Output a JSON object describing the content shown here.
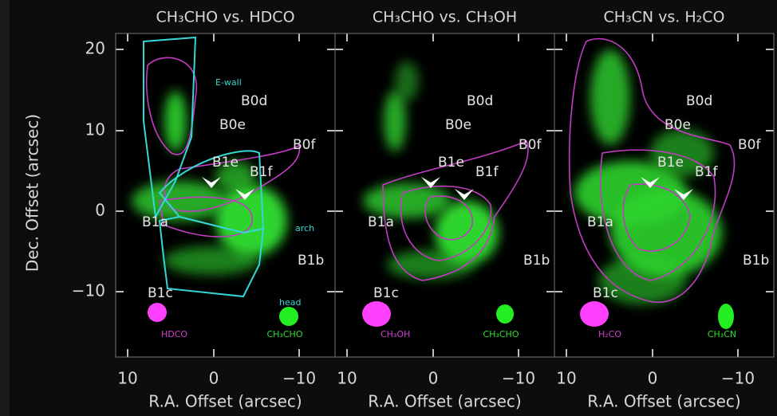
{
  "figure": {
    "y_axis": {
      "label": "Dec. Offset (arcsec)",
      "ticks": [
        "20",
        "10",
        "0",
        "−10"
      ]
    },
    "panels": [
      {
        "title": "CH₃CHO vs. HDCO",
        "x_ticks": [
          "10",
          "0",
          "−10"
        ],
        "x_label": "R.A. Offset (arcsec)",
        "labels": [
          "B0d",
          "B0e",
          "B0f",
          "B1e",
          "B1f",
          "B1a",
          "B1b",
          "B1c"
        ],
        "regions": [
          "E-wall",
          "arch",
          "head"
        ],
        "beams": [
          "HDCO",
          "CH₃CHO"
        ]
      },
      {
        "title": "CH₃CHO vs. CH₃OH",
        "x_ticks": [
          "10",
          "0",
          "−10"
        ],
        "x_label": "R.A. Offset (arcsec)",
        "labels": [
          "B0d",
          "B0e",
          "B0f",
          "B1e",
          "B1f",
          "B1a",
          "B1b",
          "B1c"
        ],
        "beams": [
          "CH₃OH",
          "CH₃CHO"
        ]
      },
      {
        "title": "CH₃CN vs. H₂CO",
        "x_ticks": [
          "10",
          "0",
          "−10"
        ],
        "x_label": "R.A. Offset (arcsec)",
        "labels": [
          "B0d",
          "B0e",
          "B0f",
          "B1e",
          "B1f",
          "B1a",
          "B1b",
          "B1c"
        ],
        "beams": [
          "H₂CO",
          "CH₃CN"
        ]
      }
    ]
  }
}
